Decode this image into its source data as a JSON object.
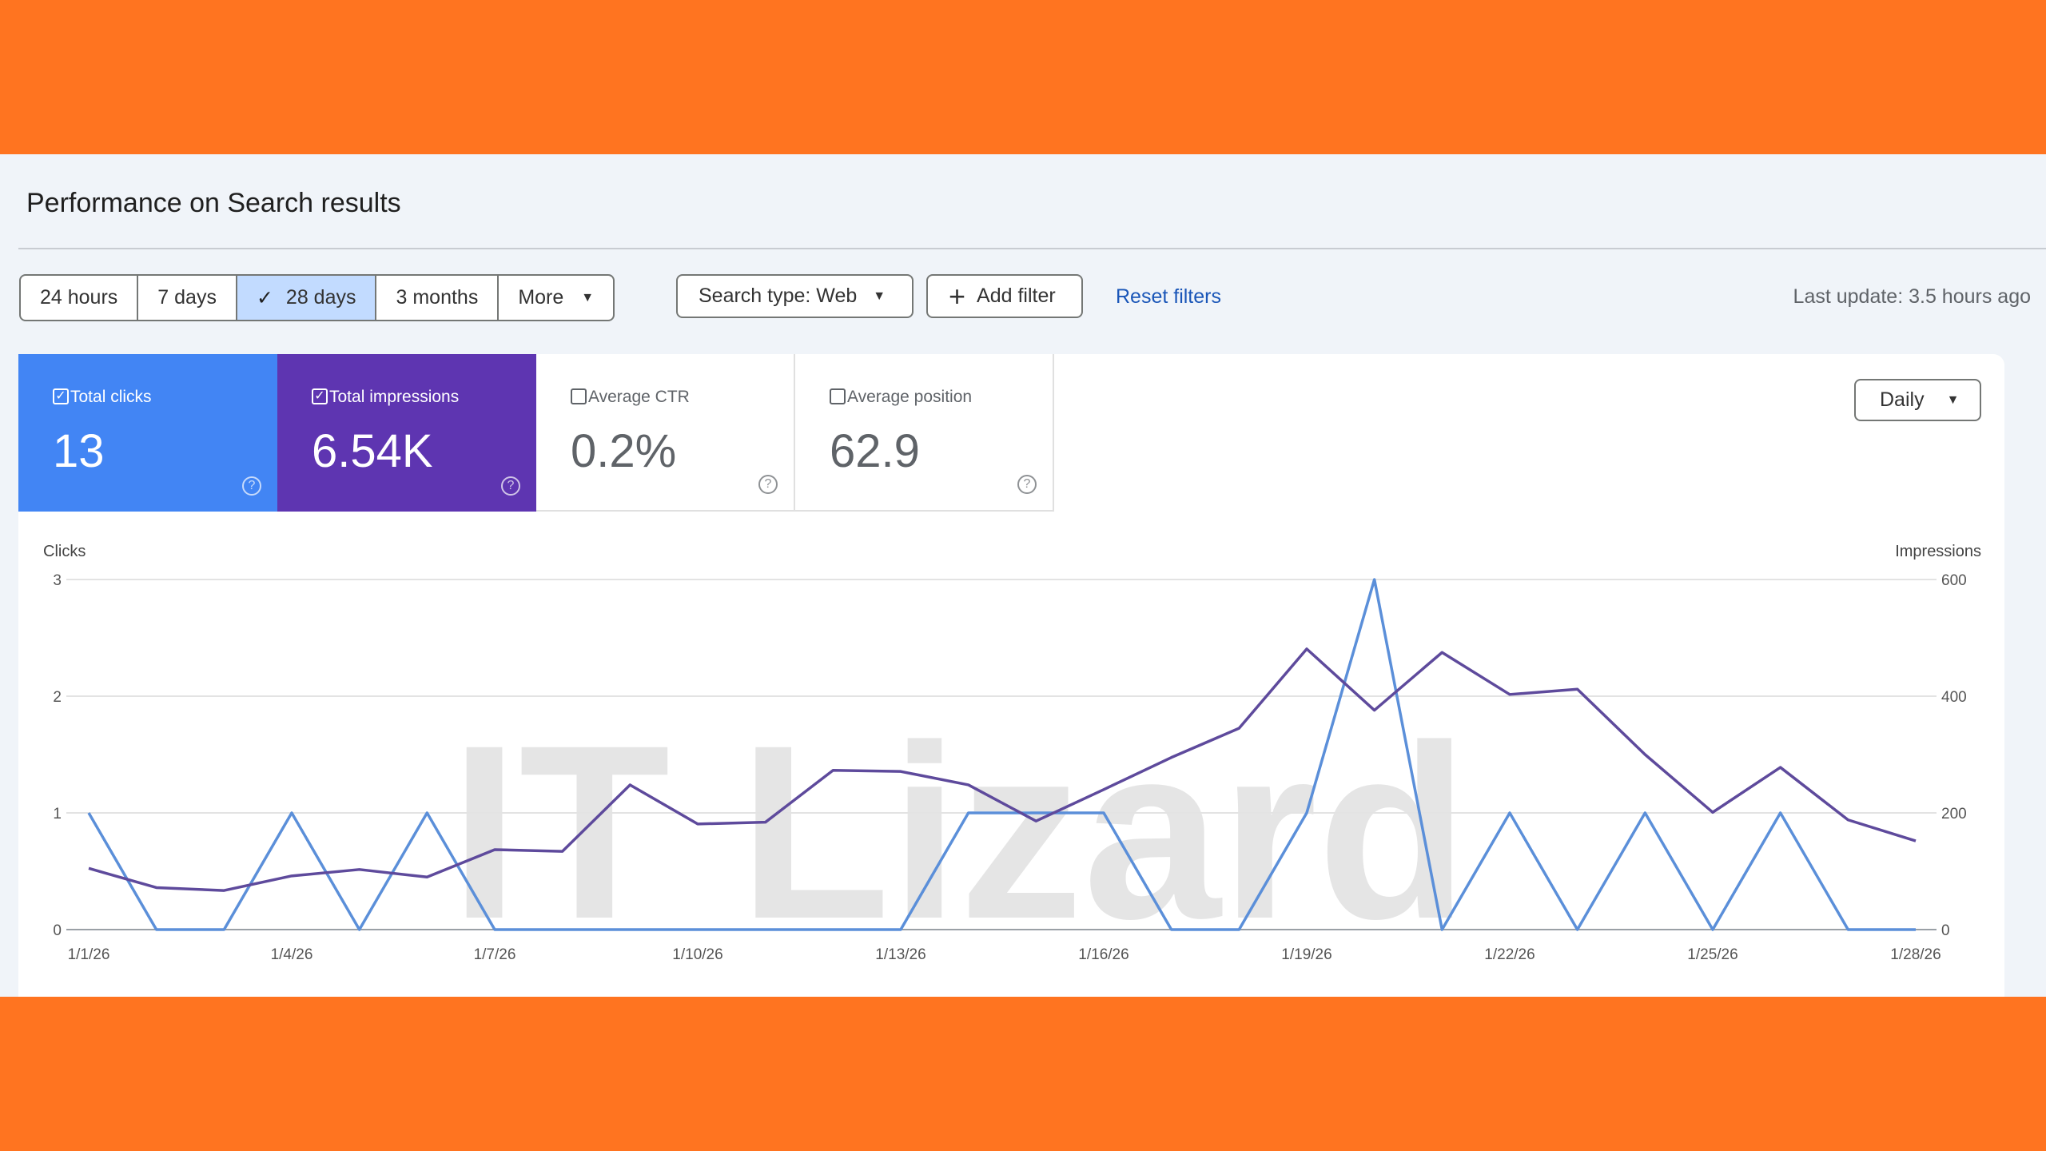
{
  "header": {
    "title": "Performance on Search results",
    "last_update": "Last update: 3.5 hours ago"
  },
  "filters": {
    "ranges": [
      "24 hours",
      "7 days",
      "28 days",
      "3 months",
      "More"
    ],
    "selected": 2,
    "search_type": "Search type: Web",
    "add_filter": "Add filter",
    "reset": "Reset filters"
  },
  "metrics": [
    {
      "label": "Total clicks",
      "value": "13",
      "checked": true,
      "color": "#4285f4"
    },
    {
      "label": "Total impressions",
      "value": "6.54K",
      "checked": true,
      "color": "#5e35b1"
    },
    {
      "label": "Average CTR",
      "value": "0.2%",
      "checked": false
    },
    {
      "label": "Average position",
      "value": "62.9",
      "checked": false
    }
  ],
  "granularity": "Daily",
  "watermark": "IT Lizard",
  "chart_data": {
    "type": "line",
    "ylabel": "Clicks",
    "y2label": "Impressions",
    "categories": [
      "1/1/26",
      null,
      null,
      "1/4/26",
      null,
      null,
      "1/7/26",
      null,
      null,
      "1/10/26",
      null,
      null,
      "1/13/26",
      null,
      null,
      "1/16/26",
      null,
      null,
      "1/19/26",
      null,
      null,
      "1/22/26",
      null,
      null,
      "1/25/26",
      null,
      null,
      "1/28/26"
    ],
    "ylim": [
      0,
      3
    ],
    "yticks": [
      0,
      1,
      2,
      3
    ],
    "y2lim": [
      0,
      600
    ],
    "y2ticks": [
      0,
      200,
      400,
      600
    ],
    "grid": true,
    "series": [
      {
        "color": "#5b8fd9",
        "values": [
          1,
          0,
          0,
          1,
          0,
          1,
          0,
          0,
          0,
          0,
          0,
          0,
          0,
          1,
          1,
          1,
          0,
          0,
          1,
          3,
          0,
          1,
          0,
          1,
          0,
          1,
          0,
          0
        ]
      },
      {
        "color": "#5e4a9c",
        "axis": "y2",
        "values": [
          105,
          72,
          67,
          92,
          103,
          90,
          137,
          134,
          248,
          181,
          184,
          273,
          271,
          248,
          186,
          240,
          295,
          345,
          481,
          376,
          475,
          403,
          412,
          300,
          201,
          278,
          188,
          152
        ]
      }
    ]
  }
}
